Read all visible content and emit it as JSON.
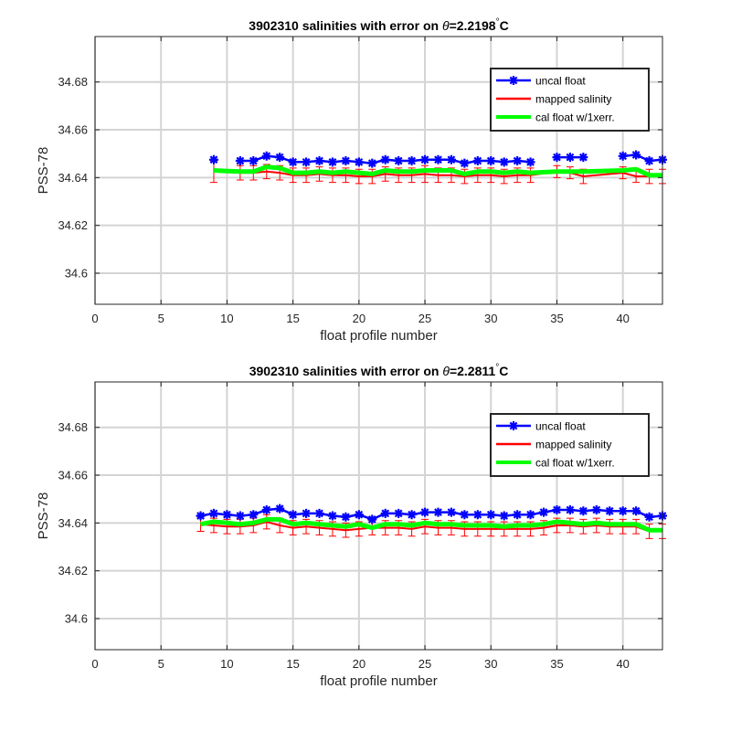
{
  "chart_data": [
    {
      "type": "line",
      "title_prefix": "3902310 salinities with error on ",
      "title_theta": "θ",
      "title_value": "=2.2198",
      "title_degree": "°",
      "title_unit": "C",
      "xlabel": "float profile number",
      "ylabel": "PSS-78",
      "xlim": [
        0,
        43
      ],
      "ylim": [
        34.587,
        34.699
      ],
      "xticks": [
        0,
        5,
        10,
        15,
        20,
        25,
        30,
        35,
        40
      ],
      "yticks": [
        34.6,
        34.62,
        34.64,
        34.66,
        34.68
      ],
      "xtick_labels": [
        "0",
        "5",
        "10",
        "15",
        "20",
        "25",
        "30",
        "35",
        "40"
      ],
      "ytick_labels": [
        "34.6",
        "34.62",
        "34.64",
        "34.66",
        "34.68"
      ],
      "grid": true,
      "legend_position": "top-right",
      "series": [
        {
          "name": "uncal float",
          "color": "#0000ff",
          "marker": "asterisk",
          "x": [
            9,
            11,
            12,
            13,
            14,
            15,
            16,
            17,
            18,
            19,
            20,
            21,
            22,
            23,
            24,
            25,
            26,
            27,
            28,
            29,
            30,
            31,
            32,
            33,
            35,
            36,
            37,
            40,
            41,
            42,
            43
          ],
          "y": [
            34.6475,
            34.647,
            34.647,
            34.649,
            34.6485,
            34.6465,
            34.6465,
            34.647,
            34.6465,
            34.647,
            34.6465,
            34.646,
            34.6475,
            34.647,
            34.647,
            34.6475,
            34.6475,
            34.6475,
            34.646,
            34.647,
            34.647,
            34.6465,
            34.647,
            34.6465,
            34.6485,
            34.6485,
            34.6485,
            34.649,
            34.6495,
            34.647,
            34.6475
          ]
        },
        {
          "name": "mapped salinity",
          "color": "#ff0000",
          "x": [
            9,
            11,
            12,
            13,
            14,
            15,
            16,
            17,
            18,
            19,
            20,
            21,
            22,
            23,
            24,
            25,
            26,
            27,
            28,
            29,
            30,
            31,
            32,
            33,
            35,
            36,
            37,
            40,
            41,
            42,
            43
          ],
          "y": [
            34.6425,
            34.642,
            34.642,
            34.6425,
            34.642,
            34.641,
            34.641,
            34.6415,
            34.641,
            34.641,
            34.6405,
            34.6405,
            34.6415,
            34.641,
            34.641,
            34.6415,
            34.641,
            34.641,
            34.6405,
            34.641,
            34.641,
            34.6405,
            34.641,
            34.641,
            34.6425,
            34.642,
            34.6405,
            34.642,
            34.6405,
            34.6405,
            34.6405
          ],
          "err": [
            0.0045,
            0.003,
            0.003,
            0.003,
            0.003,
            0.003,
            0.003,
            0.003,
            0.003,
            0.003,
            0.003,
            0.003,
            0.003,
            0.003,
            0.003,
            0.0035,
            0.003,
            0.003,
            0.003,
            0.003,
            0.003,
            0.003,
            0.003,
            0.003,
            0.0025,
            0.0025,
            0.003,
            0.0025,
            0.0025,
            0.003,
            0.003
          ]
        },
        {
          "name": "cal float w/1xerr.",
          "color": "#00ff00",
          "x": [
            9,
            11,
            12,
            13,
            14,
            15,
            16,
            17,
            18,
            19,
            20,
            21,
            22,
            23,
            24,
            25,
            26,
            27,
            28,
            29,
            30,
            31,
            32,
            33,
            35,
            36,
            37,
            40,
            41,
            42,
            43
          ],
          "y": [
            34.643,
            34.6425,
            34.6425,
            34.6445,
            34.644,
            34.642,
            34.642,
            34.6425,
            34.642,
            34.6425,
            34.642,
            34.6415,
            34.643,
            34.6425,
            34.6425,
            34.643,
            34.643,
            34.643,
            34.6415,
            34.6425,
            34.6425,
            34.642,
            34.6425,
            34.642,
            34.6425,
            34.6425,
            34.6425,
            34.643,
            34.6435,
            34.641,
            34.641
          ]
        }
      ]
    },
    {
      "type": "line",
      "title_prefix": "3902310 salinities with error on ",
      "title_theta": "θ",
      "title_value": "=2.2811",
      "title_degree": "°",
      "title_unit": "C",
      "xlabel": "float profile number",
      "ylabel": "PSS-78",
      "xlim": [
        0,
        43
      ],
      "ylim": [
        34.587,
        34.699
      ],
      "xticks": [
        0,
        5,
        10,
        15,
        20,
        25,
        30,
        35,
        40
      ],
      "yticks": [
        34.6,
        34.62,
        34.64,
        34.66,
        34.68
      ],
      "xtick_labels": [
        "0",
        "5",
        "10",
        "15",
        "20",
        "25",
        "30",
        "35",
        "40"
      ],
      "ytick_labels": [
        "34.6",
        "34.62",
        "34.64",
        "34.66",
        "34.68"
      ],
      "grid": true,
      "legend_position": "top-right",
      "series": [
        {
          "name": "uncal float",
          "color": "#0000ff",
          "marker": "asterisk",
          "x": [
            8,
            9,
            10,
            11,
            12,
            13,
            14,
            15,
            16,
            17,
            18,
            19,
            20,
            21,
            22,
            23,
            24,
            25,
            26,
            27,
            28,
            29,
            30,
            31,
            32,
            33,
            34,
            35,
            36,
            37,
            38,
            39,
            40,
            41,
            42,
            43
          ],
          "y": [
            34.643,
            34.644,
            34.6435,
            34.643,
            34.6435,
            34.6455,
            34.646,
            34.6435,
            34.644,
            34.644,
            34.643,
            34.6425,
            34.6435,
            34.6415,
            34.644,
            34.644,
            34.6435,
            34.6445,
            34.6445,
            34.6445,
            34.6435,
            34.6435,
            34.6435,
            34.643,
            34.6435,
            34.6435,
            34.6445,
            34.6455,
            34.6455,
            34.645,
            34.6455,
            34.645,
            34.645,
            34.645,
            34.6425,
            34.643
          ]
        },
        {
          "name": "mapped salinity",
          "color": "#ff0000",
          "x": [
            8,
            9,
            10,
            11,
            12,
            13,
            14,
            15,
            16,
            17,
            18,
            19,
            20,
            21,
            22,
            23,
            24,
            25,
            26,
            27,
            28,
            29,
            30,
            31,
            32,
            33,
            34,
            35,
            36,
            37,
            38,
            39,
            40,
            41,
            42,
            43
          ],
          "y": [
            34.6395,
            34.639,
            34.6385,
            34.6385,
            34.639,
            34.6405,
            34.639,
            34.638,
            34.6385,
            34.638,
            34.6375,
            34.637,
            34.6375,
            34.638,
            34.638,
            34.638,
            34.6375,
            34.6385,
            34.638,
            34.638,
            34.6375,
            34.6375,
            34.6375,
            34.6375,
            34.6375,
            34.6375,
            34.638,
            34.639,
            34.639,
            34.6385,
            34.639,
            34.6385,
            34.6385,
            34.6385,
            34.6365,
            34.6365
          ],
          "err": [
            0.003,
            0.003,
            0.003,
            0.003,
            0.003,
            0.003,
            0.003,
            0.003,
            0.003,
            0.003,
            0.003,
            0.003,
            0.003,
            0.003,
            0.003,
            0.003,
            0.003,
            0.003,
            0.003,
            0.003,
            0.003,
            0.003,
            0.003,
            0.003,
            0.003,
            0.003,
            0.003,
            0.003,
            0.003,
            0.003,
            0.003,
            0.003,
            0.003,
            0.003,
            0.003,
            0.003
          ]
        },
        {
          "name": "cal float w/1xerr.",
          "color": "#00ff00",
          "x": [
            8,
            9,
            10,
            11,
            12,
            13,
            14,
            15,
            16,
            17,
            18,
            19,
            20,
            21,
            22,
            23,
            24,
            25,
            26,
            27,
            28,
            29,
            30,
            31,
            32,
            33,
            34,
            35,
            36,
            37,
            38,
            39,
            40,
            41,
            42,
            43
          ],
          "y": [
            34.6395,
            34.6405,
            34.64,
            34.6395,
            34.64,
            34.6415,
            34.6415,
            34.6395,
            34.64,
            34.6395,
            34.639,
            34.6385,
            34.6395,
            34.638,
            34.6395,
            34.6395,
            34.639,
            34.64,
            34.6395,
            34.6395,
            34.639,
            34.639,
            34.639,
            34.6385,
            34.639,
            34.639,
            34.6395,
            34.6405,
            34.64,
            34.6395,
            34.64,
            34.6395,
            34.6395,
            34.6395,
            34.637,
            34.637
          ]
        }
      ]
    }
  ]
}
